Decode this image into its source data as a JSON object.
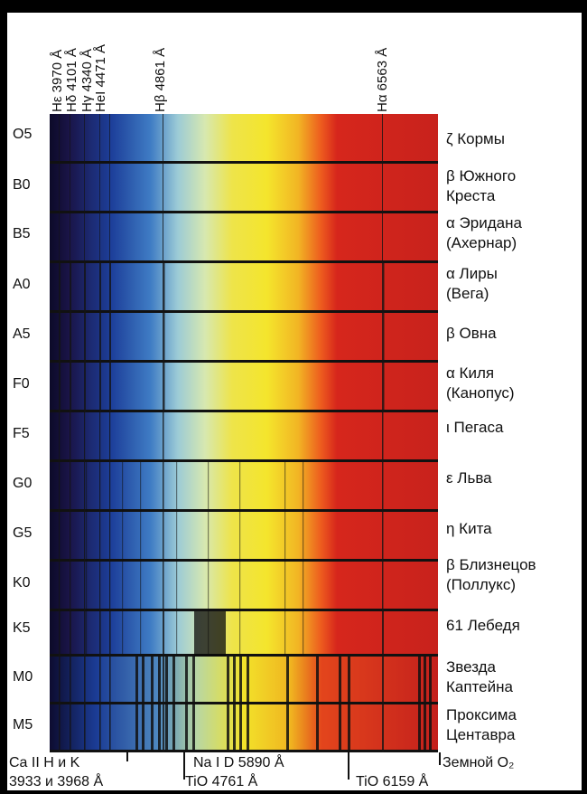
{
  "wavelength_labels": [
    {
      "text": "Hε  3970 Å",
      "pos": 0
    },
    {
      "text": "Hδ  4101 Å",
      "pos": 1
    },
    {
      "text": "Hγ  4340 Å",
      "pos": 2
    },
    {
      "text": "HeI 4471 Å",
      "pos": 3
    },
    {
      "text": "Hβ  4861 Å",
      "pos": 4
    },
    {
      "text": "Hα  6563 Å",
      "pos": 5
    }
  ],
  "spectral_classes": [
    "O5",
    "B0",
    "B5",
    "A0",
    "A5",
    "F0",
    "F5",
    "G0",
    "G5",
    "K0",
    "K5",
    "M0",
    "M5"
  ],
  "stars": [
    [
      "ζ Кормы"
    ],
    [
      "β Южного",
      "Креста"
    ],
    [
      "α Эридана",
      "(Ахернар)"
    ],
    [
      "α Лиры",
      " (Вега)"
    ],
    [
      "β Овна"
    ],
    [
      "α Киля",
      "(Канопус)"
    ],
    [
      "ι  Пегаса"
    ],
    [
      "ε Льва"
    ],
    [
      "η Кита"
    ],
    [
      "β Близнецов",
      "(Поллукс)"
    ],
    [
      "61 Лебедя"
    ],
    [
      "Звезда",
      "Каптейна"
    ],
    [
      "Проксима",
      "Центавра"
    ]
  ],
  "bottom_labels": {
    "ca": "Ca II H и K",
    "ca_values": "3933 и 3968 Å",
    "na": "Na I D 5890 Å",
    "tio1": "TiO 4761 Å",
    "tio2": "TiO 6159 Å",
    "o2": "Земной O₂"
  },
  "colors": {
    "violet": "#1a1440",
    "blue": "#1f4fa8",
    "cyan": "#8fc6d6",
    "yellow": "#f2e22a",
    "orange": "#f29a1c",
    "red": "#d22a1e"
  }
}
